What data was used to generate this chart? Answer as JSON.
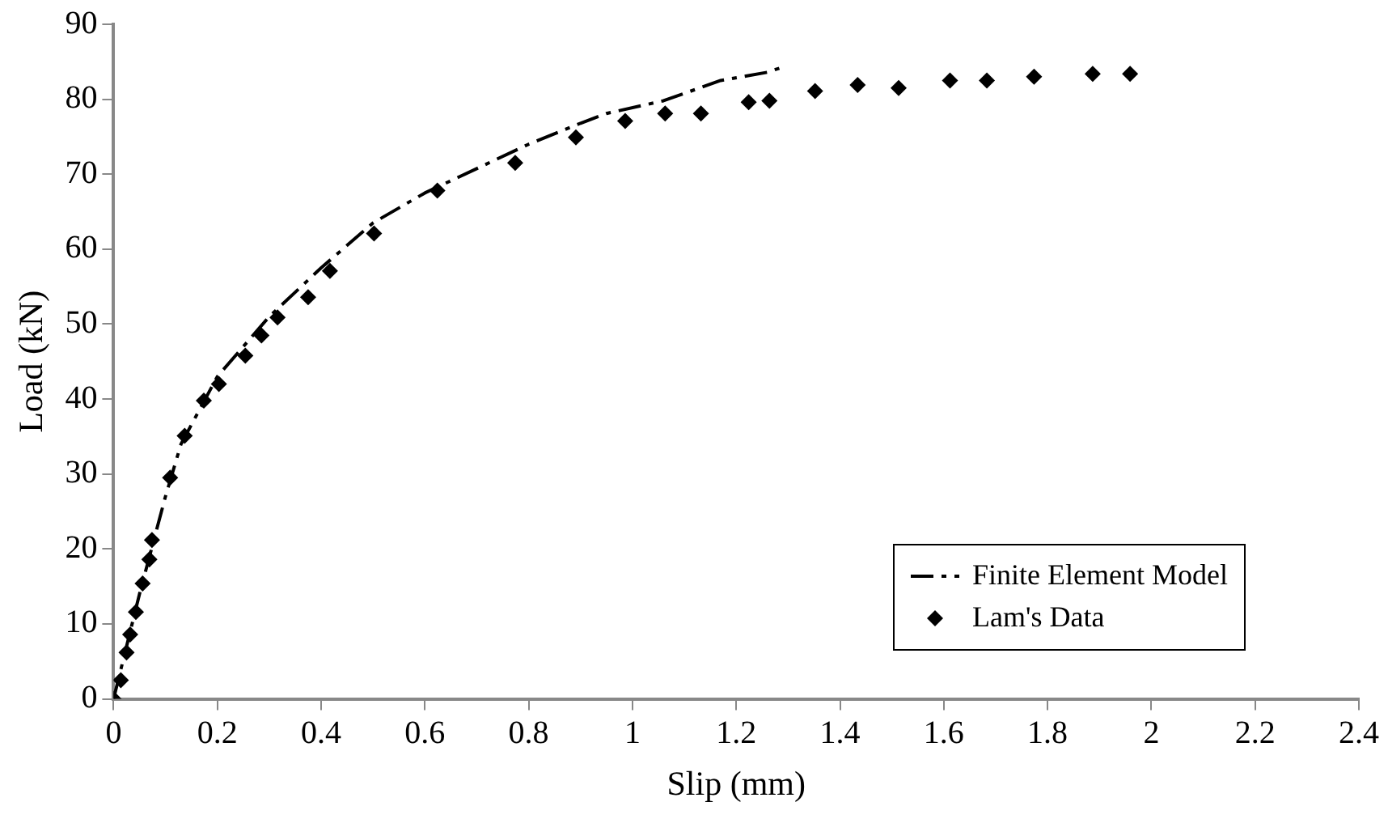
{
  "chart_data": {
    "type": "scatter",
    "xlabel": "Slip (mm)",
    "ylabel": "Load (kN)",
    "xlim": [
      0,
      2.4
    ],
    "xticks": [
      0,
      0.2,
      0.4,
      0.6,
      0.8,
      1,
      1.2,
      1.4,
      1.6,
      1.8,
      2,
      2.2,
      2.4
    ],
    "ylim": [
      0,
      90
    ],
    "yticks": [
      0,
      10,
      20,
      30,
      40,
      50,
      60,
      70,
      80,
      90
    ],
    "grid": false,
    "legend": "bottom right",
    "series": [
      {
        "name": "Finite Element Model",
        "type": "line",
        "line_style": "dashed",
        "marker": "none",
        "color": "#000000",
        "x": [
          0,
          0.05,
          0.1,
          0.13,
          0.2,
          0.3,
          0.4,
          0.5,
          0.6,
          0.8,
          0.9,
          0.95,
          1.06,
          1.17,
          1.26,
          1.29
        ],
        "values": [
          0,
          14,
          27,
          34,
          43,
          51,
          57.5,
          63.5,
          67.5,
          74,
          76.8,
          78.1,
          79.8,
          82.5,
          83.6,
          84.3
        ]
      },
      {
        "name": "Lam's Data",
        "marker": "diamond",
        "color": "#000000",
        "x": [
          0,
          0.014,
          0.025,
          0.032,
          0.043,
          0.056,
          0.069,
          0.074,
          0.109,
          0.137,
          0.174,
          0.203,
          0.254,
          0.285,
          0.316,
          0.375,
          0.417,
          0.502,
          0.624,
          0.774,
          0.891,
          0.986,
          1.063,
          1.132,
          1.224,
          1.264,
          1.352,
          1.434,
          1.513,
          1.612,
          1.683,
          1.774,
          1.887,
          1.959
        ],
        "values": [
          0,
          2.5,
          6.2,
          8.6,
          11.6,
          15.4,
          18.6,
          21.2,
          29.5,
          35.1,
          39.8,
          42,
          45.8,
          48.5,
          50.9,
          53.6,
          57.1,
          62.1,
          67.8,
          71.5,
          74.9,
          77.1,
          78.1,
          78.1,
          79.6,
          79.8,
          81.1,
          81.9,
          81.5,
          82.5,
          82.5,
          83,
          83.4,
          83.4
        ]
      }
    ]
  }
}
